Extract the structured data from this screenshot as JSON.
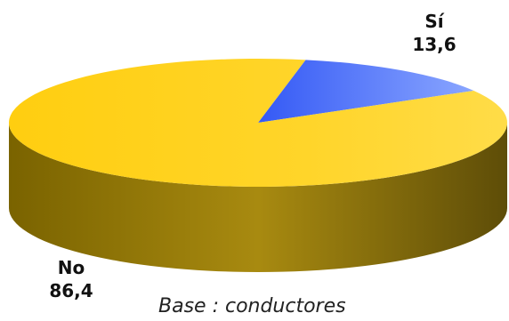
{
  "chart_data": {
    "type": "pie",
    "style": "3d",
    "slices": [
      {
        "label": "Sí",
        "value_label": "13,6",
        "value": 13.6,
        "color": "#3E6BFF"
      },
      {
        "label": "No",
        "value_label": "86,4",
        "value": 86.4,
        "color": "#FFD21A"
      }
    ],
    "note": "Base : conductores"
  }
}
